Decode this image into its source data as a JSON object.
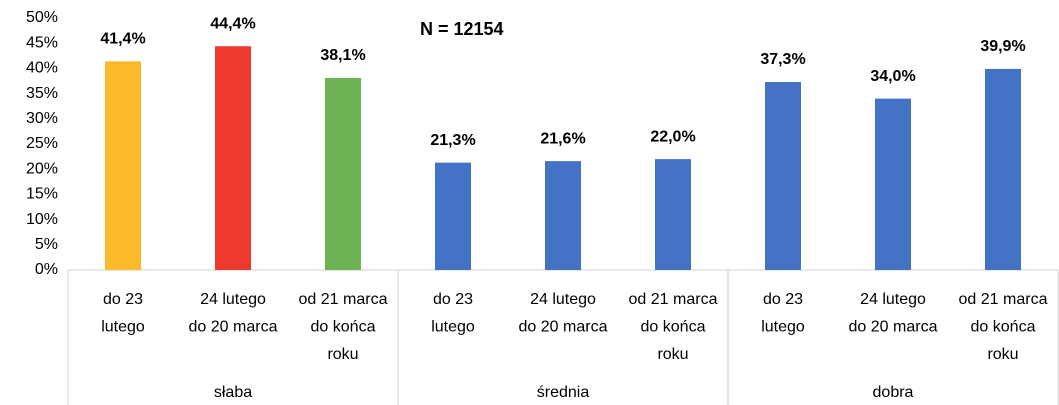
{
  "chart_data": {
    "type": "bar",
    "annotation": "N = 12154",
    "categories": [
      [
        "do 23",
        "lutego"
      ],
      [
        "24 lutego",
        "do 20 marca"
      ],
      [
        "od 21 marca",
        "do końca",
        "roku"
      ],
      [
        "do 23",
        "lutego"
      ],
      [
        "24 lutego",
        "do 20 marca"
      ],
      [
        "od 21 marca",
        "do końca",
        "roku"
      ],
      [
        "do 23",
        "lutego"
      ],
      [
        "24 lutego",
        "do 20 marca"
      ],
      [
        "od 21 marca",
        "do końca",
        "roku"
      ]
    ],
    "groups": [
      "słaba",
      "średnia",
      "dobra"
    ],
    "values": [
      41.4,
      44.4,
      38.1,
      21.3,
      21.6,
      22.0,
      37.3,
      34.0,
      39.9
    ],
    "value_labels": [
      "41,4%",
      "44,4%",
      "38,1%",
      "21,3%",
      "21,6%",
      "22,0%",
      "37,3%",
      "34,0%",
      "39,9%"
    ],
    "colors": [
      "#fbba2c",
      "#ee3a2e",
      "#6db356",
      "#4472c4",
      "#4472c4",
      "#4472c4",
      "#4472c4",
      "#4472c4",
      "#4472c4"
    ],
    "ylim": [
      0,
      50
    ],
    "yticks": [
      {
        "value": 0,
        "label": "0%"
      },
      {
        "value": 5,
        "label": "5%"
      },
      {
        "value": 10,
        "label": "10%"
      },
      {
        "value": 15,
        "label": "15%"
      },
      {
        "value": 20,
        "label": "20%"
      },
      {
        "value": 25,
        "label": "25%"
      },
      {
        "value": 30,
        "label": "30%"
      },
      {
        "value": 35,
        "label": "35%"
      },
      {
        "value": 40,
        "label": "40%"
      },
      {
        "value": 45,
        "label": "45%"
      },
      {
        "value": 50,
        "label": "50%"
      }
    ],
    "grid": false
  }
}
